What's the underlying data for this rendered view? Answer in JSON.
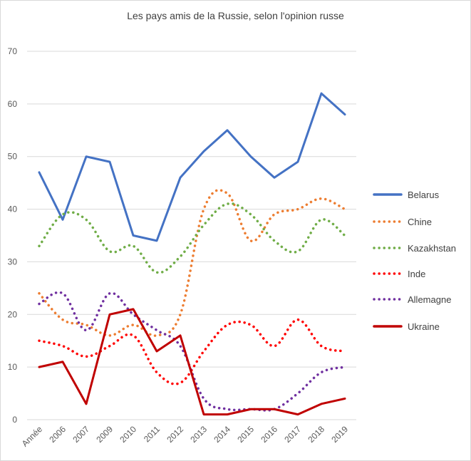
{
  "chart_data": {
    "type": "line",
    "title": "Les pays amis de la Russie, selon l'opinion russe",
    "xlabel": "",
    "ylabel": "",
    "categories": [
      "Année",
      "2006",
      "2007",
      "2009",
      "2010",
      "2011",
      "2012",
      "2013",
      "2014",
      "2015",
      "2016",
      "2017",
      "2018",
      "2019"
    ],
    "ylim": [
      0,
      70
    ],
    "yticks": [
      0,
      10,
      20,
      30,
      40,
      50,
      60,
      70
    ],
    "grid": true,
    "legend_position": "right",
    "series": [
      {
        "name": "Belarus",
        "color": "#4472c4",
        "style": "solid",
        "values": [
          47,
          38,
          50,
          49,
          35,
          34,
          46,
          51,
          55,
          50,
          46,
          49,
          62,
          58
        ]
      },
      {
        "name": "Chine",
        "color": "#ed7d31",
        "style": "dotted",
        "values": [
          24,
          19,
          18,
          16,
          18,
          16,
          20,
          40,
          43,
          34,
          39,
          40,
          42,
          40
        ]
      },
      {
        "name": "Kazakhstan",
        "color": "#70ad47",
        "style": "dotted",
        "values": [
          33,
          39,
          38,
          32,
          33,
          28,
          31,
          37,
          41,
          39,
          34,
          32,
          38,
          35
        ]
      },
      {
        "name": "Inde",
        "color": "#ff0000",
        "style": "dotted",
        "values": [
          15,
          14,
          12,
          14,
          16,
          9,
          7,
          13,
          18,
          18,
          14,
          19,
          14,
          13
        ]
      },
      {
        "name": "Allemagne",
        "color": "#7030a0",
        "style": "dotted",
        "values": [
          22,
          24,
          17,
          24,
          20,
          17,
          14,
          4,
          2,
          2,
          2,
          5,
          9,
          10
        ]
      },
      {
        "name": "Ukraine",
        "color": "#c00000",
        "style": "solid",
        "values": [
          10,
          11,
          3,
          20,
          21,
          13,
          16,
          1,
          1,
          2,
          2,
          1,
          3,
          4
        ]
      }
    ]
  }
}
